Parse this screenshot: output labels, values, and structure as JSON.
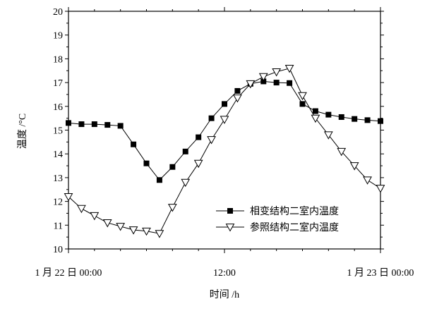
{
  "chart_data": {
    "type": "line",
    "xlabel": "时间 /h",
    "ylabel": "温度 /°C",
    "xlim": [
      0,
      24
    ],
    "ylim": [
      10,
      20
    ],
    "y_ticks": [
      10,
      11,
      12,
      13,
      14,
      15,
      16,
      17,
      18,
      19,
      20
    ],
    "x_ticks": [
      {
        "value": 0,
        "label": "1 月 22 日 00:00"
      },
      {
        "value": 12,
        "label": "12:00"
      },
      {
        "value": 24,
        "label": "1 月 23 日 00:00"
      }
    ],
    "grid": false,
    "legend_position": "bottom-right",
    "series": [
      {
        "name": "相变结构二室内温度",
        "marker": "square-filled",
        "color": "#000000",
        "x": [
          0,
          1,
          2,
          3,
          4,
          5,
          6,
          7,
          8,
          9,
          10,
          11,
          12,
          13,
          14,
          15,
          16,
          17,
          18,
          19,
          20,
          21,
          22,
          23,
          24
        ],
        "y": [
          15.3,
          15.25,
          15.25,
          15.22,
          15.18,
          14.4,
          13.6,
          12.9,
          13.45,
          14.1,
          14.7,
          15.5,
          16.1,
          16.65,
          16.95,
          17.05,
          17.0,
          16.98,
          16.1,
          15.8,
          15.65,
          15.55,
          15.47,
          15.42,
          15.38
        ]
      },
      {
        "name": "参照结构二室内温度",
        "marker": "triangle-down-open",
        "color": "#000000",
        "x": [
          0,
          1,
          2,
          3,
          4,
          5,
          6,
          7,
          8,
          9,
          10,
          11,
          12,
          13,
          14,
          15,
          16,
          17,
          18,
          19,
          20,
          21,
          22,
          23,
          24
        ],
        "y": [
          12.2,
          11.7,
          11.4,
          11.1,
          10.95,
          10.8,
          10.75,
          10.65,
          11.75,
          12.8,
          13.6,
          14.6,
          15.45,
          16.35,
          16.95,
          17.25,
          17.45,
          17.6,
          16.45,
          15.5,
          14.8,
          14.1,
          13.5,
          12.9,
          12.55
        ]
      }
    ]
  }
}
